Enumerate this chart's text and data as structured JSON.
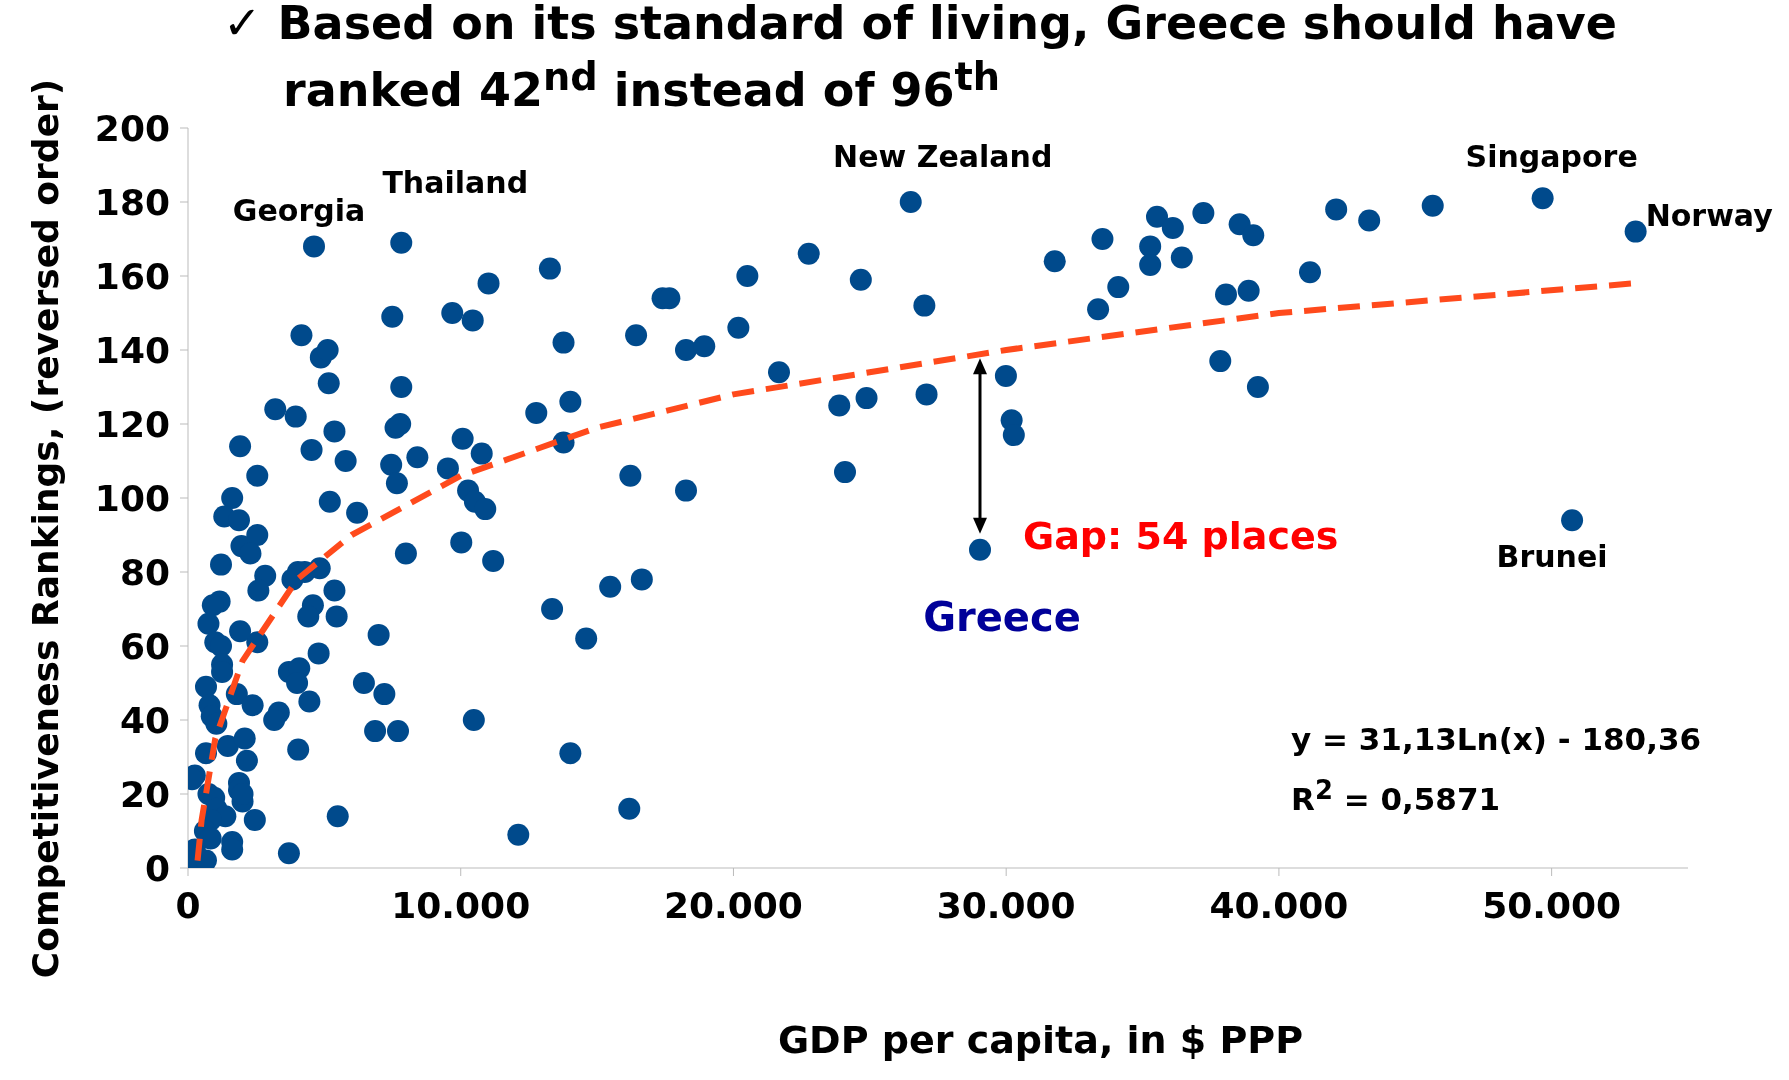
{
  "chart_data": {
    "type": "scatter",
    "title": "✓ Based on its standard of living, Greece should have ranked 42$^{nd}$ instead of 96$^{th}$",
    "xlabel": "GDP per capita, in $ PPP",
    "ylabel": "Competitiveness Rankings, (reversed order)",
    "xlim": [
      0,
      55000
    ],
    "ylim": [
      0,
      200
    ],
    "xticks": [
      0,
      {
        "value": 10000,
        "label": "10.000"
      },
      {
        "value": 20000,
        "label": "20.000"
      },
      {
        "value": 30000,
        "label": "30.000"
      },
      {
        "value": 40000,
        "label": "40.000"
      },
      {
        "value": 50000,
        "label": "50.000"
      }
    ],
    "yticks": [
      0,
      20,
      40,
      60,
      80,
      100,
      120,
      140,
      160,
      180,
      200
    ],
    "grid": false,
    "legend": false,
    "marker": "circle",
    "series": [
      {
        "type": "scatter",
        "color": "#004a8c",
        "x": [
          4620,
          7820,
          7490,
          4160,
          4870,
          5120,
          5160,
          9690,
          10440,
          11020,
          13270,
          13770,
          16430,
          17400,
          17650,
          18260,
          18930,
          20510,
          20180,
          21670,
          22760,
          24670,
          26500,
          27000,
          27080,
          24880,
          23880,
          24090,
          29990,
          30200,
          30280,
          29040,
          31780,
          33530,
          33370,
          34110,
          35280,
          35280,
          35530,
          36110,
          36440,
          37230,
          38560,
          39060,
          38060,
          38890,
          37850,
          39230,
          41140,
          42100,
          43310,
          45640,
          49670,
          53080,
          50750,
          3200,
          3950,
          7820,
          7610,
          7780,
          10070,
          1910,
          4530,
          5370,
          5780,
          7450,
          7660,
          8410,
          9530,
          10770,
          10270,
          10520,
          10900,
          12770,
          14020,
          13770,
          16220,
          18260,
          10020,
          11190,
          7990,
          5200,
          6200,
          2540,
          1620,
          1330,
          1870,
          2540,
          1960,
          2290,
          1210,
          2830,
          2580,
          4030,
          4280,
          4830,
          3830,
          5370,
          4580,
          4410,
          5450,
          6990,
          2540,
          1160,
          910,
          750,
          1000,
          1210,
          1250,
          1250,
          1910,
          4790,
          3700,
          4080,
          4000,
          6450,
          13350,
          14600,
          15480,
          16640,
          660,
          1790,
          2370,
          790,
          870,
          1040,
          4450,
          3330,
          3160,
          7200,
          6860,
          7700,
          10480,
          14020,
          4040,
          1460,
          2080,
          2160,
          660,
          250,
          150,
          750,
          960,
          1040,
          1370,
          1870,
          1870,
          2000,
          2000,
          2450,
          1620,
          1620,
          830,
          620,
          830,
          250,
          250,
          660,
          3700,
          5490,
          12110,
          16180
        ],
        "values": [
          168,
          169,
          149,
          144,
          138,
          140,
          131,
          150,
          148,
          158,
          162,
          142,
          144,
          154,
          154,
          140,
          141,
          160,
          146,
          134,
          166,
          159,
          180,
          152,
          128,
          127,
          125,
          107,
          133,
          121,
          117,
          86,
          164,
          170,
          151,
          157,
          168,
          163,
          176,
          173,
          165,
          177,
          174,
          171,
          155,
          156,
          137,
          130,
          161,
          178,
          175,
          179,
          181,
          172,
          94,
          124,
          122,
          130,
          119,
          120,
          116,
          114,
          113,
          118,
          110,
          109,
          104,
          111,
          108,
          112,
          102,
          99,
          97,
          123,
          126,
          115,
          106,
          102,
          88,
          83,
          85,
          99,
          96,
          106,
          100,
          95,
          94,
          90,
          87,
          85,
          82,
          79,
          75,
          80,
          80,
          81,
          78,
          75,
          71,
          68,
          68,
          63,
          61,
          72,
          71,
          66,
          61,
          60,
          55,
          53,
          64,
          58,
          53,
          54,
          50,
          50,
          70,
          62,
          76,
          78,
          49,
          47,
          44,
          44,
          41,
          39,
          45,
          42,
          40,
          47,
          37,
          37,
          40,
          31,
          32,
          33,
          35,
          29,
          31,
          25,
          24,
          20,
          19,
          16,
          14,
          23,
          21,
          18,
          20,
          13,
          7,
          5,
          13,
          10,
          8,
          5,
          2,
          2,
          4,
          14,
          9,
          16
        ]
      },
      {
        "type": "line",
        "color": "#ff4a1c",
        "line_style": "dashed",
        "marker": "none",
        "x": [
          350,
          500,
          1000,
          2000,
          4000,
          6000,
          10000,
          15000,
          20000,
          30000,
          40000,
          53000
        ],
        "values": [
          2,
          13,
          35,
          56,
          78,
          90,
          106,
          119,
          128,
          140,
          150,
          158
        ]
      }
    ],
    "annotations": [
      {
        "text": "Georgia",
        "x": 4620,
        "y": 168
      },
      {
        "text": "Thailand",
        "x": 7820,
        "y": 169
      },
      {
        "text": "New Zealand",
        "x": 26500,
        "y": 180
      },
      {
        "text": "Singapore",
        "x": 49670,
        "y": 181
      },
      {
        "text": "Norway",
        "x": 53080,
        "y": 172
      },
      {
        "text": "Greece",
        "x": 29040,
        "y": 86
      },
      {
        "text": "Brunei",
        "x": 50750,
        "y": 94
      },
      "Gap: 54 places",
      "y = 31,13Ln(x) - 180,36",
      "R$^{2}$ = 0,5871"
    ]
  }
}
